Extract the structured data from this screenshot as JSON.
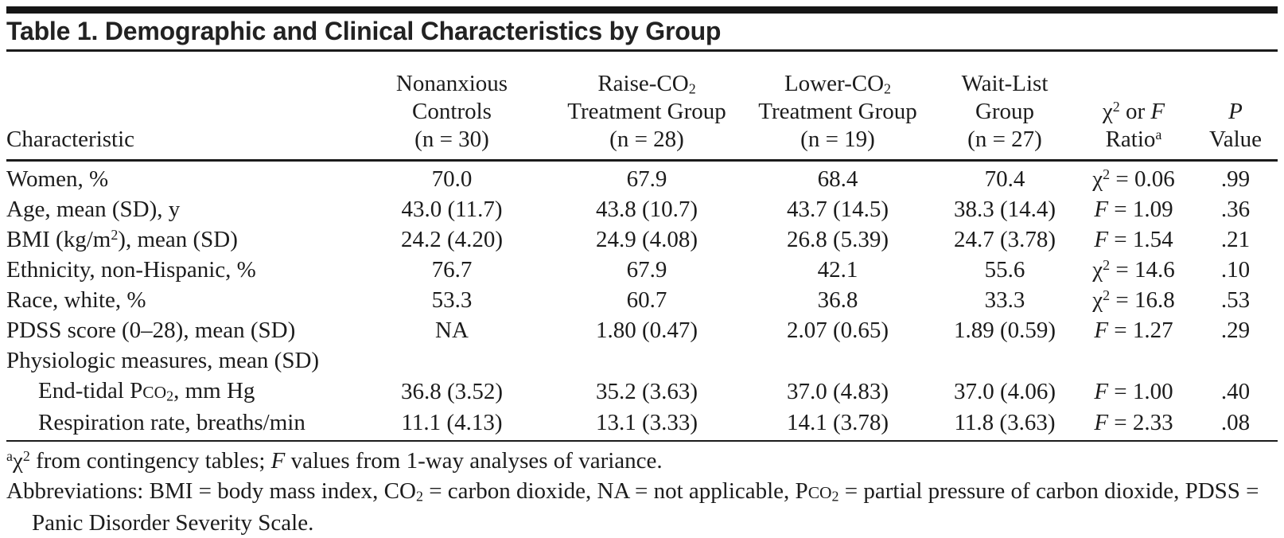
{
  "colors": {
    "ink": "#1c1c1c",
    "background": "#ffffff"
  },
  "title": "Table 1. Demographic and Clinical Characteristics by Group",
  "table": {
    "header": [
      "Characteristic",
      "Nonanxious<br>Controls<br>(n = 30)",
      "Raise-CO<sub>2</sub><br>Treatment Group<br>(n = 28)",
      "Lower-CO<sub>2</sub><br>Treatment Group<br>(n = 19)",
      "Wait-List<br>Group<br>(n = 27)",
      "χ<sup>2</sup> or <i>F</i><br>Ratio<sup>a</sup>",
      "<i>P</i><br>Value"
    ],
    "rows": [
      {
        "indent": false,
        "cells": [
          "Women, %",
          "70.0",
          "67.9",
          "68.4",
          "70.4",
          "χ<sup>2</sup> = 0.06",
          ".99"
        ]
      },
      {
        "indent": false,
        "cells": [
          "Age, mean (SD), y",
          "43.0 (11.7)",
          "43.8 (10.7)",
          "43.7 (14.5)",
          "38.3 (14.4)",
          "<i>F</i> = 1.09",
          ".36"
        ]
      },
      {
        "indent": false,
        "cells": [
          "BMI (kg/m<sup>2</sup>), mean (SD)",
          "24.2 (4.20)",
          "24.9 (4.08)",
          "26.8 (5.39)",
          "24.7 (3.78)",
          "<i>F</i> = 1.54",
          ".21"
        ]
      },
      {
        "indent": false,
        "cells": [
          "Ethnicity, non-Hispanic, %",
          "76.7",
          "67.9",
          "42.1",
          "55.6",
          "χ<sup>2</sup> = 14.6",
          ".10"
        ]
      },
      {
        "indent": false,
        "cells": [
          "Race, white, %",
          "53.3",
          "60.7",
          "36.8",
          "33.3",
          "χ<sup>2</sup> = 16.8",
          ".53"
        ]
      },
      {
        "indent": false,
        "cells": [
          "PDSS score (0–28), mean (SD)",
          "NA",
          "1.80 (0.47)",
          "2.07 (0.65)",
          "1.89 (0.59)",
          "<i>F</i> = 1.27",
          ".29"
        ]
      },
      {
        "indent": false,
        "cells": [
          "Physiologic measures, mean (SD)",
          "",
          "",
          "",
          "",
          "",
          ""
        ]
      },
      {
        "indent": true,
        "cells": [
          "End-tidal P<small>CO</small><sub>2</sub>, mm Hg",
          "36.8 (3.52)",
          "35.2 (3.63)",
          "37.0 (4.83)",
          "37.0 (4.06)",
          "<i>F</i> = 1.00",
          ".40"
        ]
      },
      {
        "indent": true,
        "cells": [
          "Respiration rate, breaths/min",
          "11.1 (4.13)",
          "13.1 (3.33)",
          "14.1 (3.78)",
          "11.8 (3.63)",
          "<i>F</i> = 2.33",
          ".08"
        ]
      }
    ]
  },
  "footnotes": [
    "<sup>a</sup>χ<sup>2</sup> from contingency tables; <i>F</i> values from 1-way analyses of variance.",
    "Abbreviations: BMI = body mass index, CO<sub>2</sub> = carbon dioxide, NA = not applicable, P<small>CO</small><sub>2</sub> = partial pressure of carbon dioxide, PDSS = Panic Disorder Severity Scale."
  ]
}
